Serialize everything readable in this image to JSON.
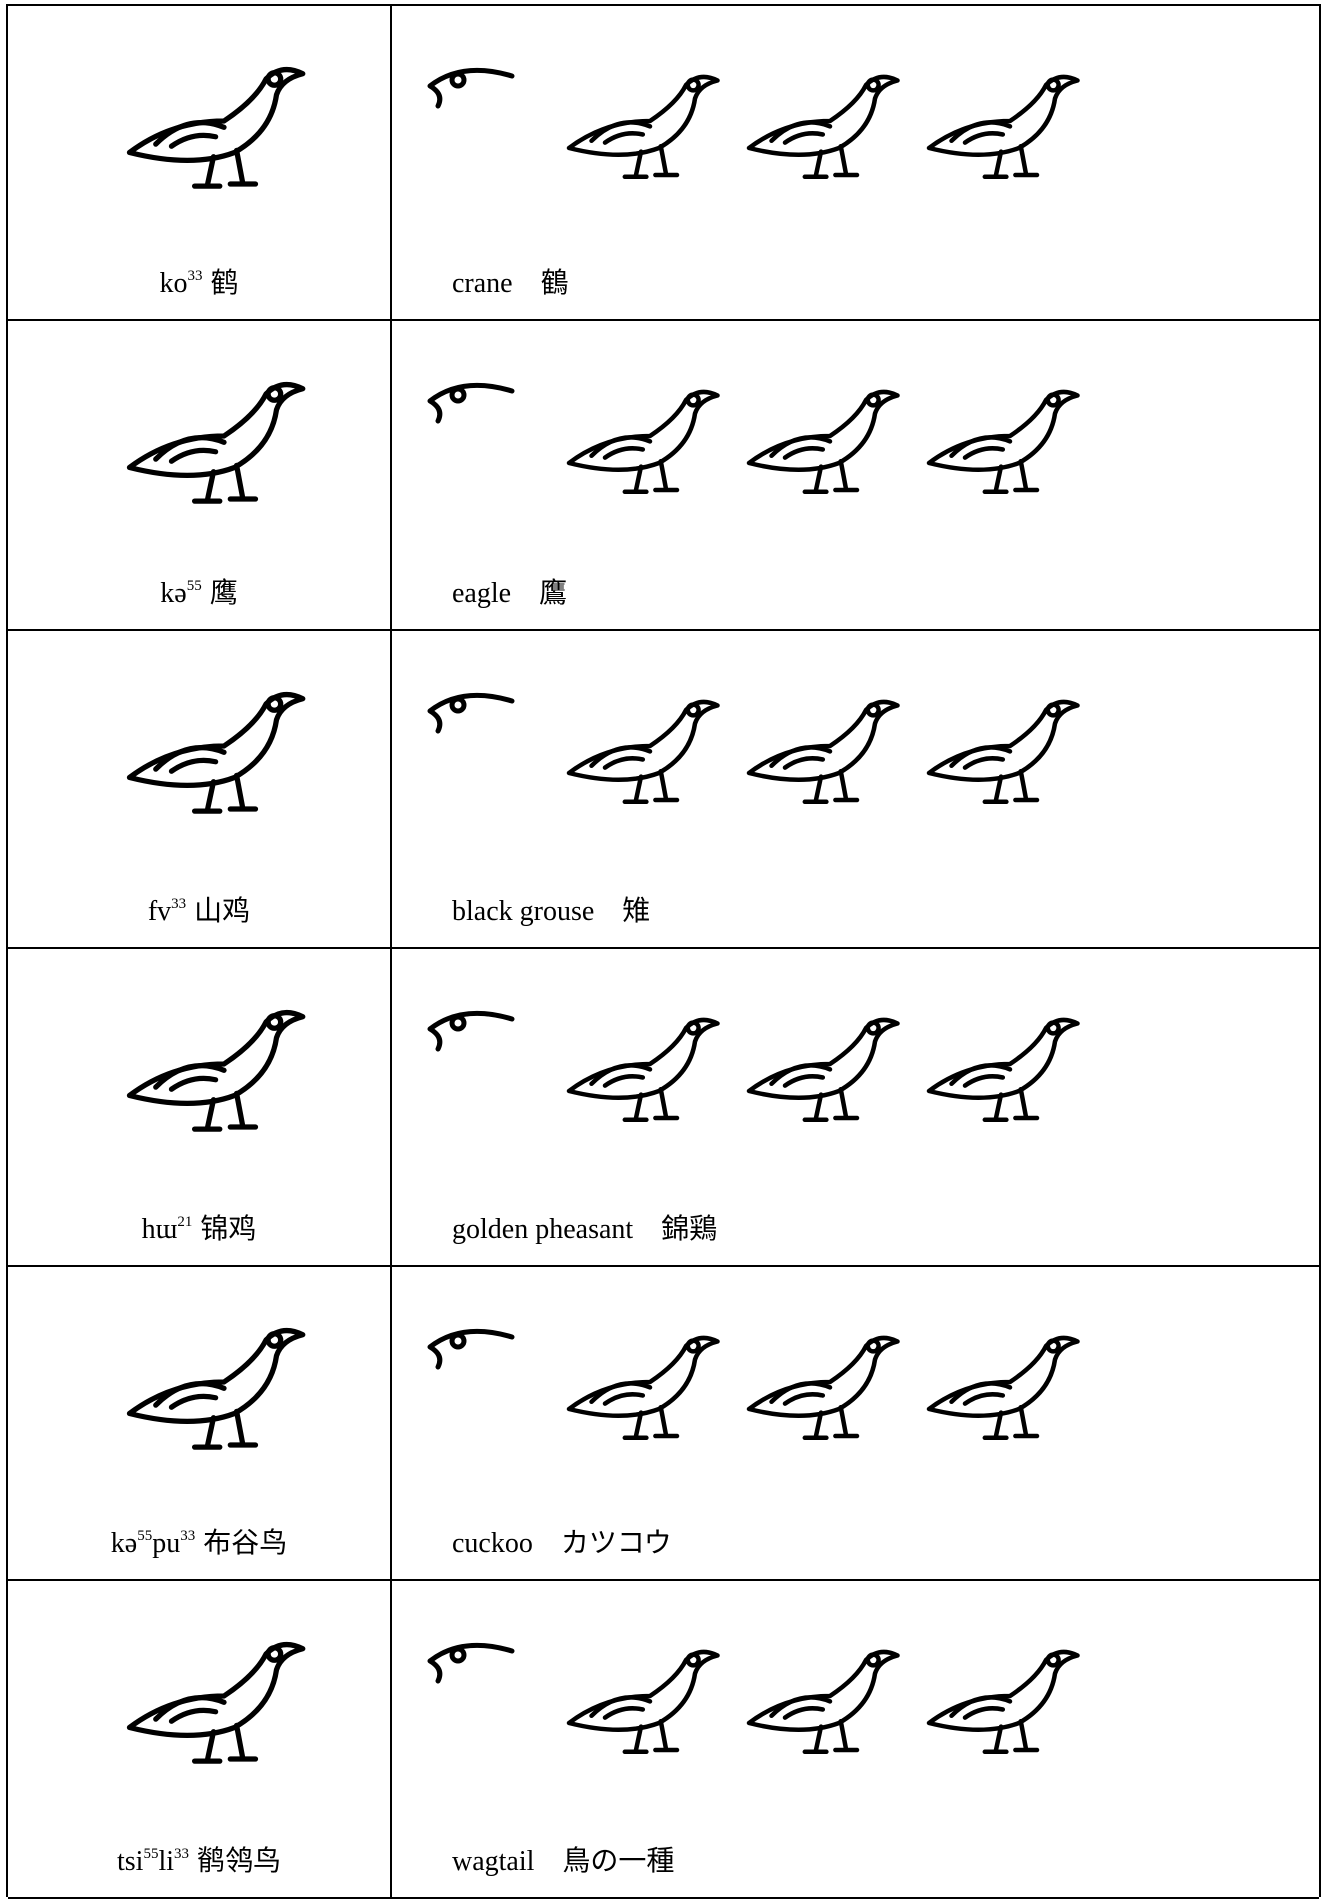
{
  "rows": [
    {
      "native": [
        [
          "ko",
          "33"
        ]
      ],
      "chinese": "鹤",
      "english": "crane",
      "gloss": "鶴"
    },
    {
      "native": [
        [
          "kə",
          "55"
        ]
      ],
      "chinese": "鹰",
      "english": "eagle",
      "gloss": "鷹"
    },
    {
      "native": [
        [
          "fv",
          "33"
        ]
      ],
      "chinese": "山鸡",
      "english": "black grouse",
      "gloss": "雉"
    },
    {
      "native": [
        [
          "hɯ",
          "21"
        ]
      ],
      "chinese": "锦鸡",
      "english": "golden pheasant",
      "gloss": "錦鶏"
    },
    {
      "native": [
        [
          "kə",
          "55"
        ],
        [
          "pu",
          "33"
        ]
      ],
      "chinese": "布谷鸟",
      "english": "cuckoo",
      "gloss": "カツコウ"
    },
    {
      "native": [
        [
          "tsi",
          "55"
        ],
        [
          "li",
          "33"
        ]
      ],
      "chinese": "鹡鸰鸟",
      "english": "wagtail",
      "gloss": "鳥の一種"
    }
  ]
}
